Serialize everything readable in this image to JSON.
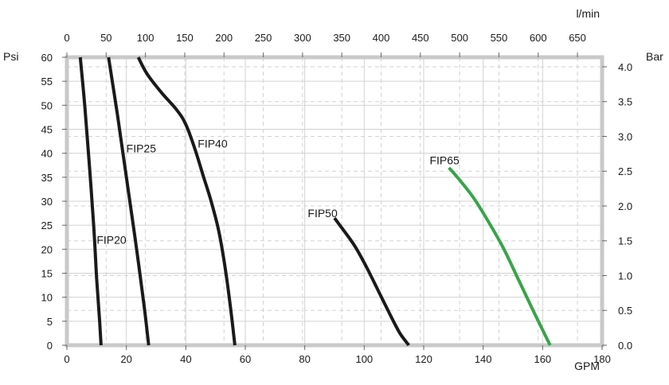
{
  "chart_data": {
    "type": "line",
    "x_bottom": {
      "label": "GPM",
      "range": [
        0,
        180
      ],
      "ticks": [
        "0",
        "20",
        "40",
        "60",
        "80",
        "100",
        "120",
        "140",
        "160",
        "180"
      ]
    },
    "x_top": {
      "label": "l/min",
      "range_lpm": [
        0,
        681.4
      ],
      "ticks": [
        "0",
        "50",
        "100",
        "150",
        "200",
        "250",
        "300",
        "350",
        "400",
        "450",
        "500",
        "550",
        "600",
        "650"
      ]
    },
    "y_left": {
      "label": "Psi",
      "range": [
        0,
        60
      ],
      "ticks": [
        "0",
        "5",
        "10",
        "15",
        "20",
        "25",
        "30",
        "35",
        "40",
        "45",
        "50",
        "55",
        "60"
      ]
    },
    "y_right": {
      "label": "Bar",
      "range_bar": [
        0,
        4.137
      ],
      "ticks": [
        "0.0",
        "0.5",
        "1.0",
        "1.5",
        "2.0",
        "2.5",
        "3.0",
        "3.5",
        "4.0"
      ]
    },
    "grid": true,
    "series": [
      {
        "name": "FIP20",
        "color": "#1a1a1a",
        "x": [
          4.5,
          6,
          7.5,
          9,
          10,
          11,
          11.5
        ],
        "y": [
          60,
          50,
          38,
          25,
          14,
          5,
          0
        ]
      },
      {
        "name": "FIP25",
        "color": "#1a1a1a",
        "x": [
          14,
          17,
          20,
          23,
          26,
          27.5
        ],
        "y": [
          60,
          48,
          35,
          22,
          8,
          0
        ]
      },
      {
        "name": "FIP40",
        "color": "#1a1a1a",
        "x": [
          24,
          27,
          32,
          37,
          40,
          43,
          46,
          48.5,
          51,
          53,
          55,
          56.5
        ],
        "y": [
          60,
          56.5,
          52.5,
          49,
          46,
          41,
          35,
          30,
          24,
          17,
          8,
          0
        ]
      },
      {
        "name": "FIP50",
        "color": "#1a1a1a",
        "x": [
          90,
          93,
          97,
          101,
          105,
          109,
          112,
          115
        ],
        "y": [
          26.5,
          24,
          20.5,
          16,
          11,
          6,
          2.5,
          0
        ]
      },
      {
        "name": "FIP65",
        "color": "#3aa34a",
        "x": [
          128.5,
          132,
          137,
          142,
          147,
          152,
          157,
          162.5
        ],
        "y": [
          37,
          34.5,
          30.5,
          25.5,
          20,
          13.5,
          7,
          0
        ]
      }
    ],
    "annotations": [
      {
        "text": "FIP20",
        "x": 10,
        "y": 22
      },
      {
        "text": "FIP25",
        "x": 20,
        "y": 41
      },
      {
        "text": "FIP40",
        "x": 44,
        "y": 42
      },
      {
        "text": "FIP50",
        "x": 81,
        "y": 27.5
      },
      {
        "text": "FIP65",
        "x": 122,
        "y": 38.5
      }
    ]
  }
}
